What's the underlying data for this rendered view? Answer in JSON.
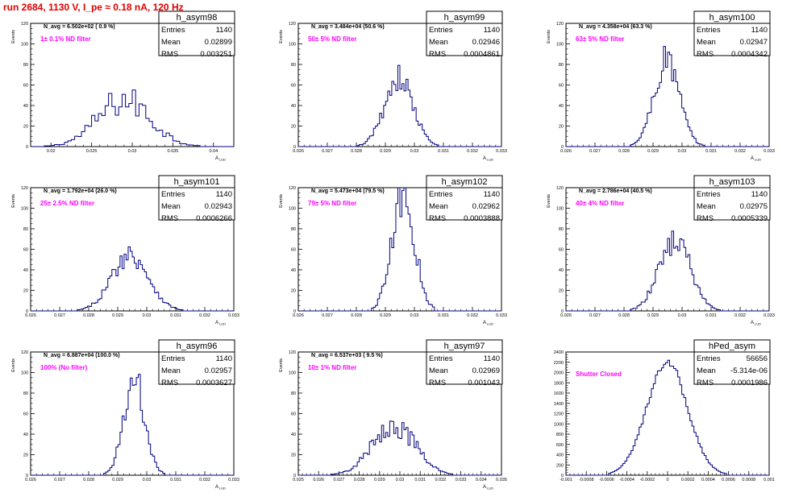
{
  "title": "run 2684,  1130 V, I_pe ≈ 0.18 nA, 120 Hz",
  "colors": {
    "title": "#e00000",
    "annotation": "#ff00ff",
    "histogram": "#000080",
    "frame": "#000000"
  },
  "chart_data": [
    {
      "type": "histogram",
      "name": "h_asym98",
      "navg": "N_avg = 6.502e+02 ( 0.9 %)",
      "annotation": "1± 0.1% ND filter",
      "stats": [
        [
          "Entries",
          "1140"
        ],
        [
          "Mean",
          "0.02899"
        ],
        [
          "RMS",
          "0.003251"
        ]
      ],
      "ylabel": "Events",
      "xlabel": "A",
      "xlabel_sub": "LUD",
      "xlim": [
        0.0175,
        0.0425
      ],
      "ylim": [
        0,
        120
      ],
      "xticks": [
        "0.02",
        "0.025",
        "0.03",
        "0.035",
        "0.04"
      ],
      "xtick_values": [
        0.02,
        0.025,
        0.03,
        0.035,
        0.04
      ],
      "yticks": [
        0,
        20,
        40,
        60,
        80,
        100,
        120
      ],
      "mean": 0.02899,
      "rms": 0.003251,
      "peak": 45,
      "n_bins": 60,
      "noise": 0.35
    },
    {
      "type": "histogram",
      "name": "h_asym99",
      "navg": "N_avg = 3.484e+04 (50.6 %)",
      "annotation": "50± 5% ND filter",
      "stats": [
        [
          "Entries",
          "1140"
        ],
        [
          "Mean",
          "0.02946"
        ],
        [
          "RMS",
          "0.0004861"
        ]
      ],
      "ylabel": "Events",
      "xlabel": "A",
      "xlabel_sub": "LUD",
      "xlim": [
        0.026,
        0.033
      ],
      "ylim": [
        0,
        120
      ],
      "xticks": [
        "0.026",
        "0.027",
        "0.028",
        "0.029",
        "0.03",
        "0.031",
        "0.032",
        "0.033"
      ],
      "xtick_values": [
        0.026,
        0.027,
        0.028,
        0.029,
        0.03,
        0.031,
        0.032,
        0.033
      ],
      "yticks": [
        0,
        20,
        40,
        60,
        80,
        100,
        120
      ],
      "mean": 0.02946,
      "rms": 0.0004861,
      "peak": 67,
      "n_bins": 100,
      "noise": 0.2
    },
    {
      "type": "histogram",
      "name": "h_asym100",
      "navg": "N_avg = 4.358e+04 (63.3 %)",
      "annotation": "63± 5% ND filter",
      "stats": [
        [
          "Entries",
          "1140"
        ],
        [
          "Mean",
          "0.02947"
        ],
        [
          "RMS",
          "0.0004342"
        ]
      ],
      "ylabel": "Events",
      "xlabel": "A",
      "xlabel_sub": "LUD",
      "xlim": [
        0.026,
        0.033
      ],
      "ylim": [
        0,
        120
      ],
      "xticks": [
        "0.026",
        "0.027",
        "0.028",
        "0.029",
        "0.03",
        "0.031",
        "0.032",
        "0.033"
      ],
      "xtick_values": [
        0.026,
        0.027,
        0.028,
        0.029,
        0.03,
        0.031,
        0.032,
        0.033
      ],
      "yticks": [
        0,
        20,
        40,
        60,
        80,
        100,
        120
      ],
      "mean": 0.02947,
      "rms": 0.0004342,
      "peak": 84,
      "n_bins": 100,
      "noise": 0.2
    },
    {
      "type": "histogram",
      "name": "h_asym101",
      "navg": "N_avg = 1.792e+04 (26.0 %)",
      "annotation": "25± 2.5% ND filter",
      "stats": [
        [
          "Entries",
          "1140"
        ],
        [
          "Mean",
          "0.02943"
        ],
        [
          "RMS",
          "0.0006266"
        ]
      ],
      "ylabel": "Events",
      "xlabel": "A",
      "xlabel_sub": "LUD",
      "xlim": [
        0.026,
        0.033
      ],
      "ylim": [
        0,
        120
      ],
      "xticks": [
        "0.026",
        "0.027",
        "0.028",
        "0.029",
        "0.03",
        "0.031",
        "0.032",
        "0.033"
      ],
      "xtick_values": [
        0.026,
        0.027,
        0.028,
        0.029,
        0.03,
        0.031,
        0.032,
        0.033
      ],
      "yticks": [
        0,
        20,
        40,
        60,
        80,
        100,
        120
      ],
      "mean": 0.02943,
      "rms": 0.0006266,
      "peak": 55,
      "n_bins": 100,
      "noise": 0.2
    },
    {
      "type": "histogram",
      "name": "h_asym102",
      "navg": "N_avg = 5.473e+04 (79.5 %)",
      "annotation": "79± 5% ND filter",
      "stats": [
        [
          "Entries",
          "1140"
        ],
        [
          "Mean",
          "0.02962"
        ],
        [
          "RMS",
          "0.0003888"
        ]
      ],
      "ylabel": "Events",
      "xlabel": "A",
      "xlabel_sub": "LUD",
      "xlim": [
        0.026,
        0.033
      ],
      "ylim": [
        0,
        120
      ],
      "xticks": [
        "0.026",
        "0.027",
        "0.028",
        "0.029",
        "0.03",
        "0.031",
        "0.032",
        "0.033"
      ],
      "xtick_values": [
        0.026,
        0.027,
        0.028,
        0.029,
        0.03,
        0.031,
        0.032,
        0.033
      ],
      "yticks": [
        0,
        20,
        40,
        60,
        80,
        100,
        120
      ],
      "mean": 0.02962,
      "rms": 0.0003888,
      "peak": 113,
      "n_bins": 100,
      "noise": 0.2
    },
    {
      "type": "histogram",
      "name": "h_asym103",
      "navg": "N_avg = 2.786e+04 (40.5 %)",
      "annotation": "40± 4% ND filter",
      "stats": [
        [
          "Entries",
          "1140"
        ],
        [
          "Mean",
          "0.02975"
        ],
        [
          "RMS",
          "0.0005339"
        ]
      ],
      "ylabel": "Events",
      "xlabel": "A",
      "xlabel_sub": "LUD",
      "xlim": [
        0.026,
        0.033
      ],
      "ylim": [
        0,
        120
      ],
      "xticks": [
        "0.026",
        "0.027",
        "0.028",
        "0.029",
        "0.03",
        "0.031",
        "0.032",
        "0.033"
      ],
      "xtick_values": [
        0.026,
        0.027,
        0.028,
        0.029,
        0.03,
        0.031,
        0.032,
        0.033
      ],
      "yticks": [
        0,
        20,
        40,
        60,
        80,
        100,
        120
      ],
      "mean": 0.02975,
      "rms": 0.0005339,
      "peak": 70,
      "n_bins": 100,
      "noise": 0.2
    },
    {
      "type": "histogram",
      "name": "h_asym96",
      "navg": "N_avg = 6.887e+04 (100.0 %)",
      "annotation": "100% (No filter)",
      "stats": [
        [
          "Entries",
          "1140"
        ],
        [
          "Mean",
          "0.02957"
        ],
        [
          "RMS",
          "0.0003627"
        ]
      ],
      "ylabel": "Events",
      "xlabel": "A",
      "xlabel_sub": "LUD",
      "xlim": [
        0.026,
        0.033
      ],
      "ylim": [
        0,
        120
      ],
      "xticks": [
        "0.026",
        "0.027",
        "0.028",
        "0.029",
        "0.03",
        "0.031",
        "0.032",
        "0.033"
      ],
      "xtick_values": [
        0.026,
        0.027,
        0.028,
        0.029,
        0.03,
        0.031,
        0.032,
        0.033
      ],
      "yticks": [
        0,
        20,
        40,
        60,
        80,
        100,
        120
      ],
      "mean": 0.02957,
      "rms": 0.0003627,
      "peak": 92,
      "n_bins": 100,
      "noise": 0.2
    },
    {
      "type": "histogram",
      "name": "h_asym97",
      "navg": "N_avg = 6.537e+03 ( 9.5 %)",
      "annotation": "10± 1% ND filter",
      "stats": [
        [
          "Entries",
          "1140"
        ],
        [
          "Mean",
          "0.02969"
        ],
        [
          "RMS",
          "0.001043"
        ]
      ],
      "ylabel": "Events",
      "xlabel": "A",
      "xlabel_sub": "LUD",
      "xlim": [
        0.025,
        0.035
      ],
      "ylim": [
        0,
        120
      ],
      "xticks": [
        "0.025",
        "0.026",
        "0.027",
        "0.028",
        "0.029",
        "0.03",
        "0.031",
        "0.032",
        "0.033",
        "0.034",
        "0.035"
      ],
      "xtick_values": [
        0.025,
        0.026,
        0.027,
        0.028,
        0.029,
        0.03,
        0.031,
        0.032,
        0.033,
        0.034,
        0.035
      ],
      "yticks": [
        0,
        20,
        40,
        60,
        80,
        100,
        120
      ],
      "mean": 0.02969,
      "rms": 0.001043,
      "peak": 49,
      "n_bins": 100,
      "noise": 0.25
    },
    {
      "type": "histogram",
      "name": "hPed_asym",
      "navg": "",
      "annotation": "Shutter Closed",
      "stats": [
        [
          "Entries",
          "56656"
        ],
        [
          "Mean",
          "-5.314e-06"
        ],
        [
          "RMS",
          "0.0001986"
        ]
      ],
      "ylabel": "",
      "xlabel": "",
      "xlabel_sub": "",
      "xlim": [
        -0.001,
        0.001
      ],
      "ylim": [
        0,
        2400
      ],
      "xticks": [
        "-0.001",
        "-0.0008",
        "-0.0006",
        "-0.0004",
        "-0.0002",
        "0",
        "0.0002",
        "0.0004",
        "0.0006",
        "0.0008",
        "0.001"
      ],
      "xtick_values": [
        -0.001,
        -0.0008,
        -0.0006,
        -0.0004,
        -0.0002,
        0,
        0.0002,
        0.0004,
        0.0006,
        0.0008,
        0.001
      ],
      "yticks": [
        0,
        200,
        400,
        600,
        800,
        1000,
        1200,
        1400,
        1600,
        1800,
        2000,
        2200,
        2400
      ],
      "mean": -5.314e-06,
      "rms": 0.0001986,
      "peak": 2210,
      "n_bins": 100,
      "noise": 0.04
    }
  ]
}
